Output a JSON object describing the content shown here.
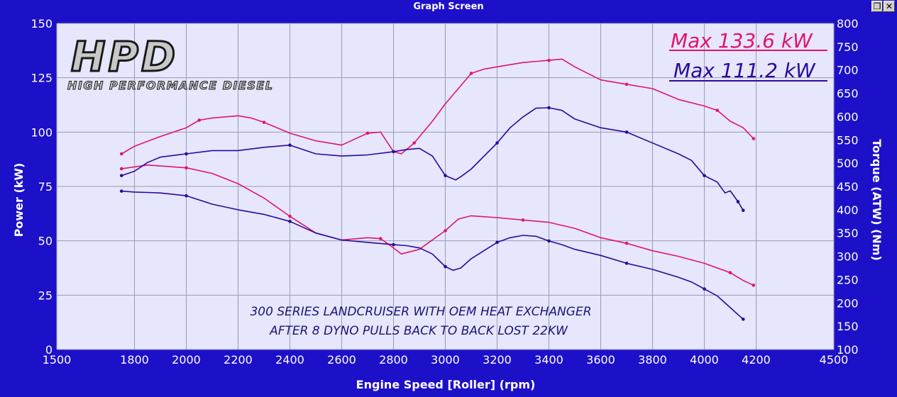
{
  "window": {
    "title": "Graph Screen",
    "restore_glyph": "❐",
    "close_glyph": "✕"
  },
  "logo": {
    "text": "HPD",
    "subtitle": "HIGH PERFORMANCE DIESEL"
  },
  "colors": {
    "run1": "#e0156f",
    "run2": "#2a0a9e",
    "plot_bg": "#e6e6fc",
    "frame": "#1d10c9",
    "grid": "#9a9ab4",
    "annotation": "#1a147a"
  },
  "chart_data": {
    "type": "line",
    "xlabel": "Engine Speed [Roller] (rpm)",
    "ylabel_left": "Power (kW)",
    "ylabel_right": "Torque (ATW) (Nm)",
    "xlim": [
      1500,
      4500
    ],
    "ylim_left": [
      0,
      150
    ],
    "ylim_right": [
      100,
      800
    ],
    "x_ticks": [
      "1500",
      "1800",
      "2000",
      "2200",
      "2400",
      "2600",
      "2800",
      "3000",
      "3200",
      "3400",
      "3600",
      "3800",
      "4000",
      "4200",
      "4500"
    ],
    "y_ticks_left": [
      "0",
      "25",
      "50",
      "75",
      "100",
      "125",
      "150"
    ],
    "y_ticks_right": [
      "100",
      "150",
      "200",
      "250",
      "300",
      "350",
      "400",
      "450",
      "500",
      "550",
      "600",
      "650",
      "700",
      "750",
      "800"
    ],
    "grid": true,
    "legend": [
      {
        "label": "Max 133.6 kW",
        "color": "#e0156f"
      },
      {
        "label": "Max 111.2 kW",
        "color": "#2a0a9e"
      }
    ],
    "annotation": [
      "300 SERIES LANDCRUISER WITH OEM HEAT EXCHANGER",
      "AFTER 8 DYNO PULLS BACK TO BACK LOST 22KW"
    ],
    "series": [
      {
        "name": "Max 133.6 kW",
        "quantity": "power",
        "axis": "left",
        "color": "#e0156f",
        "x": [
          1750,
          1800,
          1900,
          2000,
          2050,
          2100,
          2200,
          2250,
          2300,
          2400,
          2500,
          2600,
          2700,
          2750,
          2800,
          2830,
          2880,
          2950,
          3000,
          3050,
          3100,
          3150,
          3200,
          3300,
          3400,
          3450,
          3500,
          3600,
          3700,
          3800,
          3900,
          4000,
          4050,
          4100,
          4150,
          4190
        ],
        "y": [
          90,
          93.5,
          98,
          102,
          105.5,
          106.5,
          107.5,
          106.5,
          104.5,
          99.5,
          96,
          94,
          99.5,
          100,
          91,
          90,
          95,
          105,
          113,
          120,
          127,
          129,
          130,
          132,
          133,
          133.6,
          130,
          124,
          122,
          120,
          115,
          112,
          110,
          105,
          102,
          97
        ]
      },
      {
        "name": "Max 133.6 kW",
        "quantity": "torque",
        "axis": "right",
        "color": "#e0156f",
        "x": [
          1750,
          1800,
          1850,
          1900,
          2000,
          2100,
          2200,
          2300,
          2400,
          2500,
          2600,
          2700,
          2750,
          2800,
          2830,
          2900,
          3000,
          3050,
          3100,
          3200,
          3300,
          3400,
          3500,
          3600,
          3700,
          3800,
          3900,
          4000,
          4100,
          4150,
          4190
        ],
        "y": [
          488,
          492,
          496,
          494,
          490,
          478,
          456,
          425,
          386,
          350,
          335,
          340,
          338,
          318,
          305,
          315,
          355,
          380,
          387,
          383,
          378,
          373,
          360,
          340,
          328,
          312,
          300,
          285,
          265,
          248,
          238
        ]
      },
      {
        "name": "Max 111.2 kW",
        "quantity": "power",
        "axis": "left",
        "color": "#2a0a9e",
        "x": [
          1750,
          1800,
          1850,
          1900,
          2000,
          2100,
          2200,
          2300,
          2400,
          2500,
          2600,
          2700,
          2800,
          2850,
          2900,
          2950,
          3000,
          3040,
          3060,
          3100,
          3200,
          3250,
          3300,
          3350,
          3400,
          3450,
          3500,
          3600,
          3700,
          3800,
          3900,
          3950,
          4000,
          4050,
          4080,
          4100,
          4130,
          4150
        ],
        "y": [
          80,
          82,
          86,
          88.5,
          90,
          91.5,
          91.5,
          93,
          94,
          90,
          89,
          89.5,
          91,
          92,
          92.5,
          89,
          80,
          78,
          79.5,
          83,
          95,
          102,
          107,
          111,
          111.2,
          110,
          106,
          102,
          100,
          95,
          90,
          87,
          80,
          77,
          72,
          73,
          68,
          64
        ]
      },
      {
        "name": "Max 111.2 kW",
        "quantity": "torque",
        "axis": "right",
        "color": "#2a0a9e",
        "x": [
          1750,
          1800,
          1850,
          1900,
          2000,
          2100,
          2200,
          2300,
          2400,
          2500,
          2600,
          2700,
          2800,
          2850,
          2900,
          2950,
          3000,
          3030,
          3060,
          3100,
          3200,
          3250,
          3300,
          3350,
          3400,
          3450,
          3500,
          3600,
          3700,
          3800,
          3900,
          3950,
          4000,
          4050,
          4100,
          4150
        ],
        "y": [
          440,
          438,
          437,
          436,
          430,
          412,
          400,
          390,
          375,
          350,
          335,
          330,
          325,
          323,
          318,
          305,
          278,
          270,
          275,
          295,
          330,
          340,
          345,
          343,
          333,
          325,
          315,
          302,
          285,
          272,
          255,
          245,
          230,
          215,
          190,
          165
        ]
      }
    ]
  }
}
